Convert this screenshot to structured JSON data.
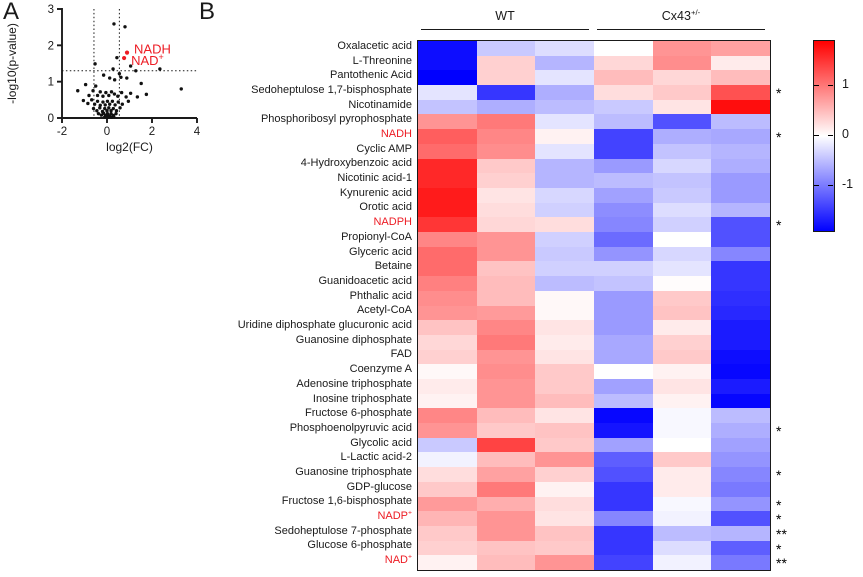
{
  "panels": {
    "a_label": "A",
    "b_label": "B"
  },
  "colors": {
    "highlight_red": "#ed1c24",
    "point_black": "#111111",
    "axis_black": "#1a1a1a",
    "cmap_positive": "#ff0000",
    "cmap_zero": "#ffffff",
    "cmap_negative": "#0000ff"
  },
  "chart_data": [
    {
      "id": "volcano",
      "type": "scatter",
      "xlabel": "log2(FC)",
      "ylabel": "-log10(p-value)",
      "xlim": [
        -2,
        4
      ],
      "ylim": [
        0,
        3
      ],
      "xticks": [
        -2,
        0,
        2,
        4
      ],
      "yticks": [
        0,
        1,
        2,
        3
      ],
      "thresholds": {
        "x": [
          -0.58,
          0.55
        ],
        "y": 1.3
      },
      "highlighted": [
        {
          "label": "NADH",
          "sup": "",
          "x": 0.89,
          "y": 1.8
        },
        {
          "label": "NAD",
          "sup": "+",
          "x": 0.76,
          "y": 1.65
        }
      ],
      "points": [
        [
          0.31,
          2.59
        ],
        [
          0.8,
          2.51
        ],
        [
          -0.53,
          1.49
        ],
        [
          0.44,
          1.66
        ],
        [
          0.27,
          1.35
        ],
        [
          1.05,
          1.43
        ],
        [
          1.28,
          1.3
        ],
        [
          2.35,
          1.35
        ],
        [
          -0.15,
          1.18
        ],
        [
          0.12,
          1.1
        ],
        [
          0.55,
          1.22
        ],
        [
          0.34,
          1.05
        ],
        [
          0.62,
          1.12
        ],
        [
          0.88,
          1.1
        ],
        [
          1.52,
          0.95
        ],
        [
          -1.3,
          0.75
        ],
        [
          -0.95,
          0.92
        ],
        [
          -0.8,
          0.62
        ],
        [
          -0.62,
          0.75
        ],
        [
          -0.5,
          0.88
        ],
        [
          -0.42,
          0.62
        ],
        [
          -0.3,
          0.72
        ],
        [
          -0.18,
          0.6
        ],
        [
          -0.05,
          0.7
        ],
        [
          0.08,
          0.62
        ],
        [
          0.2,
          0.72
        ],
        [
          0.33,
          0.66
        ],
        [
          0.48,
          0.6
        ],
        [
          0.65,
          0.7
        ],
        [
          0.85,
          0.58
        ],
        [
          1.05,
          0.68
        ],
        [
          1.35,
          0.58
        ],
        [
          1.75,
          0.65
        ],
        [
          3.3,
          0.8
        ],
        [
          -1.05,
          0.48
        ],
        [
          -0.85,
          0.4
        ],
        [
          -0.68,
          0.5
        ],
        [
          -0.55,
          0.38
        ],
        [
          -0.42,
          0.46
        ],
        [
          -0.3,
          0.35
        ],
        [
          -0.18,
          0.44
        ],
        [
          -0.08,
          0.36
        ],
        [
          0.02,
          0.46
        ],
        [
          0.12,
          0.38
        ],
        [
          0.24,
          0.46
        ],
        [
          0.36,
          0.36
        ],
        [
          0.5,
          0.44
        ],
        [
          0.68,
          0.38
        ],
        [
          0.95,
          0.46
        ],
        [
          -0.6,
          0.26
        ],
        [
          -0.45,
          0.2
        ],
        [
          -0.32,
          0.28
        ],
        [
          -0.2,
          0.18
        ],
        [
          -0.1,
          0.26
        ],
        [
          0.0,
          0.2
        ],
        [
          0.08,
          0.28
        ],
        [
          0.18,
          0.2
        ],
        [
          0.28,
          0.26
        ],
        [
          0.42,
          0.2
        ],
        [
          0.58,
          0.28
        ],
        [
          -0.38,
          0.12
        ],
        [
          -0.25,
          0.08
        ],
        [
          -0.15,
          0.13
        ],
        [
          -0.06,
          0.07
        ],
        [
          0.02,
          0.12
        ],
        [
          0.1,
          0.06
        ],
        [
          0.18,
          0.12
        ],
        [
          0.28,
          0.07
        ],
        [
          0.4,
          0.12
        ],
        [
          -0.1,
          0.03
        ],
        [
          -0.02,
          0.05
        ],
        [
          0.04,
          0.02
        ],
        [
          0.12,
          0.04
        ],
        [
          0.2,
          0.02
        ],
        [
          0.3,
          0.04
        ]
      ]
    },
    {
      "id": "heatmap",
      "type": "heatmap",
      "groups": [
        {
          "label": "WT",
          "sup": "",
          "cols": 3
        },
        {
          "label": "Cx43",
          "sup": "+/-",
          "cols": 3
        }
      ],
      "colorbar": {
        "ticks": [
          1,
          0,
          -1
        ],
        "vmin": -1.9,
        "vmax": 1.9
      },
      "rows": [
        {
          "label": "Oxalacetic acid",
          "sup": "",
          "red": false,
          "sig": "",
          "values": [
            -1.8,
            -0.4,
            -0.25,
            0.0,
            0.8,
            0.7
          ]
        },
        {
          "label": "L-Threonine",
          "sup": "",
          "red": false,
          "sig": "",
          "values": [
            -1.8,
            0.35,
            -0.55,
            0.3,
            0.85,
            0.15
          ]
        },
        {
          "label": "Pantothenic Acid",
          "sup": "",
          "red": false,
          "sig": "",
          "values": [
            -1.9,
            0.35,
            -0.2,
            0.5,
            0.3,
            0.5
          ]
        },
        {
          "label": "Sedoheptulose 1,7-bisphosphate",
          "sup": "",
          "red": false,
          "sig": "*",
          "values": [
            -0.2,
            -1.5,
            -0.6,
            0.25,
            0.4,
            1.3
          ]
        },
        {
          "label": "Nicotinamide",
          "sup": "",
          "red": false,
          "sig": "",
          "values": [
            -0.45,
            -0.6,
            -0.5,
            -0.4,
            0.2,
            1.8
          ]
        },
        {
          "label": "Phosphoribosyl pyrophosphate",
          "sup": "",
          "red": false,
          "sig": "",
          "values": [
            0.8,
            1.0,
            -0.2,
            -0.5,
            -1.3,
            -0.5
          ]
        },
        {
          "label": "NADH",
          "sup": "",
          "red": true,
          "sig": "*",
          "values": [
            1.2,
            0.9,
            0.1,
            -1.4,
            -0.6,
            -0.65
          ]
        },
        {
          "label": "Cyclic AMP",
          "sup": "",
          "red": false,
          "sig": "",
          "values": [
            1.1,
            0.85,
            -0.2,
            -1.4,
            -0.45,
            -0.55
          ]
        },
        {
          "label": "4-Hydroxybenzoic acid",
          "sup": "",
          "red": false,
          "sig": "",
          "values": [
            1.6,
            0.4,
            -0.55,
            -0.75,
            -0.3,
            -0.6
          ]
        },
        {
          "label": "Nicotinic acid-1",
          "sup": "",
          "red": false,
          "sig": "",
          "values": [
            1.6,
            0.35,
            -0.55,
            -0.5,
            -0.45,
            -0.75
          ]
        },
        {
          "label": "Kynurenic acid",
          "sup": "",
          "red": false,
          "sig": "",
          "values": [
            1.7,
            0.2,
            -0.3,
            -0.7,
            -0.4,
            -0.75
          ]
        },
        {
          "label": "Orotic acid",
          "sup": "",
          "red": false,
          "sig": "",
          "values": [
            1.7,
            0.25,
            -0.35,
            -0.85,
            -0.25,
            -0.55
          ]
        },
        {
          "label": "NADPH",
          "sup": "",
          "red": true,
          "sig": "*",
          "values": [
            1.5,
            0.3,
            0.25,
            -0.9,
            -0.35,
            -1.3
          ]
        },
        {
          "label": "Propionyl-CoA",
          "sup": "",
          "red": false,
          "sig": "",
          "values": [
            0.9,
            0.8,
            -0.35,
            -1.1,
            0.0,
            -1.3
          ]
        },
        {
          "label": "Glyceric acid",
          "sup": "",
          "red": false,
          "sig": "",
          "values": [
            1.1,
            0.8,
            -0.4,
            -0.8,
            -0.3,
            -0.9
          ]
        },
        {
          "label": "Betaine",
          "sup": "",
          "red": false,
          "sig": "",
          "values": [
            1.1,
            0.45,
            -0.35,
            -0.35,
            -0.2,
            -1.5
          ]
        },
        {
          "label": "Guanidoacetic acid",
          "sup": "",
          "red": false,
          "sig": "",
          "values": [
            0.95,
            0.5,
            -0.5,
            -0.45,
            0.02,
            -1.5
          ]
        },
        {
          "label": "Phthalic acid",
          "sup": "",
          "red": false,
          "sig": "",
          "values": [
            0.85,
            0.5,
            0.05,
            -0.75,
            0.4,
            -1.55
          ]
        },
        {
          "label": "Acetyl-CoA",
          "sup": "",
          "red": false,
          "sig": "",
          "values": [
            0.8,
            0.75,
            0.05,
            -0.75,
            0.45,
            -1.6
          ]
        },
        {
          "label": "Uridine diphosphate glucuronic acid",
          "sup": "",
          "red": false,
          "sig": "",
          "values": [
            0.45,
            0.9,
            0.2,
            -0.75,
            0.15,
            -1.7
          ]
        },
        {
          "label": "Guanosine diphosphate",
          "sup": "",
          "red": false,
          "sig": "",
          "values": [
            0.3,
            1.0,
            0.15,
            -0.65,
            0.35,
            -1.7
          ]
        },
        {
          "label": "FAD",
          "sup": "",
          "red": false,
          "sig": "",
          "values": [
            0.35,
            0.8,
            0.2,
            -0.65,
            0.4,
            -1.8
          ]
        },
        {
          "label": "Coenzyme A",
          "sup": "",
          "red": false,
          "sig": "",
          "values": [
            0.05,
            0.85,
            0.4,
            0.0,
            0.1,
            -1.85
          ]
        },
        {
          "label": "Adenosine triphosphate",
          "sup": "",
          "red": false,
          "sig": "",
          "values": [
            0.15,
            0.8,
            0.4,
            -0.7,
            0.2,
            -1.7
          ]
        },
        {
          "label": "Inosine triphosphate",
          "sup": "",
          "red": false,
          "sig": "",
          "values": [
            0.1,
            0.8,
            0.5,
            -0.5,
            0.1,
            -1.85
          ]
        },
        {
          "label": "Fructose 6-phosphate",
          "sup": "",
          "red": false,
          "sig": "",
          "values": [
            0.9,
            0.5,
            0.2,
            -1.85,
            -0.05,
            -0.5
          ]
        },
        {
          "label": "Phosphoenolpyruvic acid",
          "sup": "",
          "red": false,
          "sig": "*",
          "values": [
            0.8,
            0.4,
            0.45,
            -1.75,
            -0.05,
            -0.6
          ]
        },
        {
          "label": "Glycolic acid",
          "sup": "",
          "red": false,
          "sig": "",
          "values": [
            -0.4,
            1.4,
            0.4,
            -0.7,
            0.0,
            -0.7
          ]
        },
        {
          "label": "L-Lactic acid-2",
          "sup": "",
          "red": false,
          "sig": "",
          "values": [
            -0.1,
            0.5,
            0.8,
            -1.2,
            0.4,
            -0.8
          ]
        },
        {
          "label": "Guanosine triphosphate",
          "sup": "",
          "red": false,
          "sig": "*",
          "values": [
            0.25,
            0.7,
            0.35,
            -1.3,
            0.15,
            -0.9
          ]
        },
        {
          "label": "GDP-glucose",
          "sup": "",
          "red": false,
          "sig": "",
          "values": [
            0.4,
            1.0,
            0.1,
            -1.5,
            0.15,
            -1.0
          ]
        },
        {
          "label": "Fructose 1,6-bisphosphate",
          "sup": "",
          "red": false,
          "sig": "*",
          "values": [
            0.75,
            0.6,
            0.25,
            -1.5,
            -0.05,
            -0.8
          ]
        },
        {
          "label": "NADP",
          "sup": "+",
          "red": true,
          "sig": "*",
          "values": [
            0.55,
            0.8,
            0.2,
            -0.9,
            -0.1,
            -1.3
          ]
        },
        {
          "label": "Sedoheptulose 7-phosphate",
          "sup": "",
          "red": false,
          "sig": "**",
          "values": [
            0.4,
            0.8,
            0.45,
            -1.5,
            -0.5,
            -0.55
          ]
        },
        {
          "label": "Glucose 6-phosphate",
          "sup": "",
          "red": false,
          "sig": "*",
          "values": [
            0.35,
            0.45,
            0.4,
            -1.5,
            -0.25,
            -1.2
          ]
        },
        {
          "label": "NAD",
          "sup": "+",
          "red": true,
          "sig": "**",
          "values": [
            0.1,
            0.5,
            0.8,
            -1.4,
            -0.1,
            -1.0
          ]
        }
      ]
    }
  ]
}
